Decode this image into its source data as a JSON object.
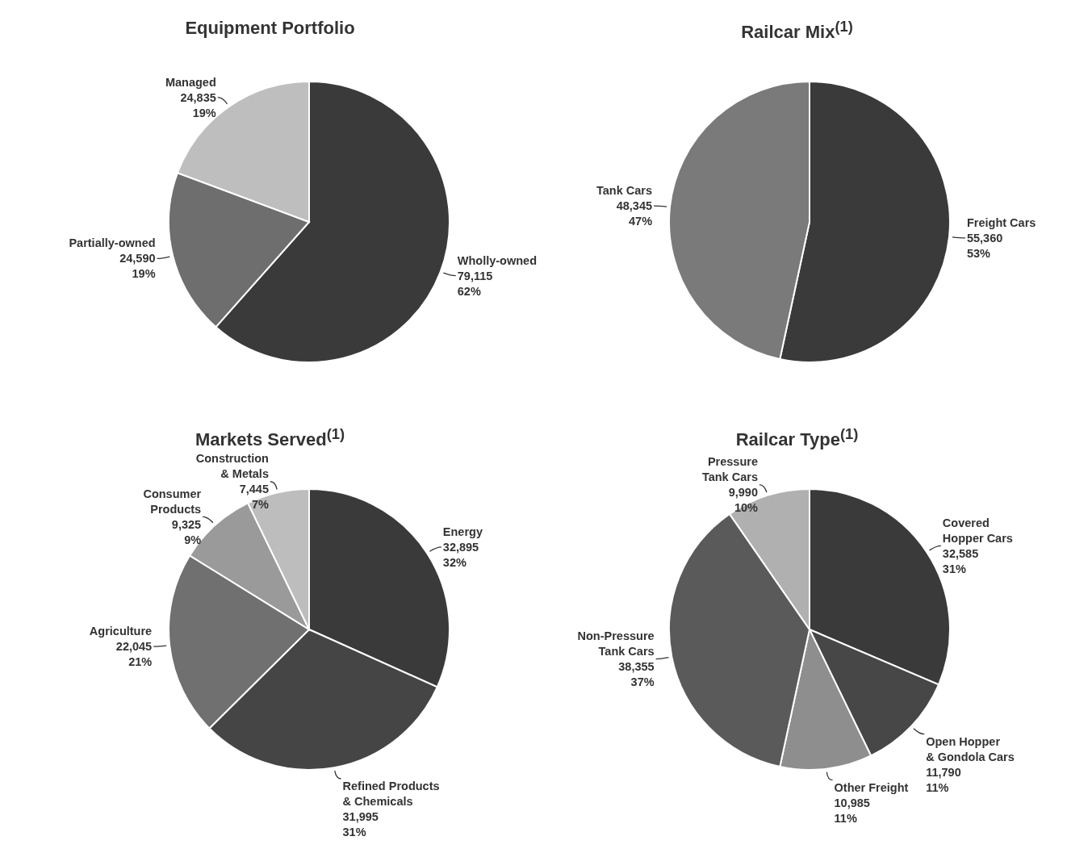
{
  "chart_data": [
    {
      "type": "pie",
      "title": "Equipment Portfolio",
      "categories": [
        "Wholly-owned",
        "Partially-owned",
        "Managed"
      ],
      "values": [
        79115,
        24590,
        24835
      ],
      "colors": [
        "#3a3a3a",
        "#6e6e6e",
        "#bebebe"
      ],
      "value_labels": [
        "79,115\n62%",
        "24,590\n19%",
        "24,835\n19%"
      ],
      "legend": false
    },
    {
      "type": "pie",
      "title": "Railcar Mix$^{(1)}$",
      "categories": [
        "Freight Cars",
        "Tank Cars"
      ],
      "values": [
        55360,
        48345
      ],
      "colors": [
        "#3a3a3a",
        "#7a7a7a"
      ],
      "value_labels": [
        "55,360\n53%",
        "48,345\n47%"
      ],
      "legend": false
    },
    {
      "type": "pie",
      "title": "Markets Served$^{(1)}$",
      "categories": [
        "Energy",
        "Refined Products & Chemicals",
        "Agriculture",
        "Consumer Products",
        "Construction & Metals"
      ],
      "values": [
        32895,
        31995,
        22045,
        9325,
        7445
      ],
      "colors": [
        "#3a3a3a",
        "#454545",
        "#707070",
        "#9a9a9a",
        "#bdbdbd"
      ],
      "value_labels": [
        "32,895\n32%",
        "31,995\n31%",
        "22,045\n21%",
        "9,325\n9%",
        "7,445\n7%"
      ],
      "legend": false
    },
    {
      "type": "pie",
      "title": "Railcar Type$^{(1)}$",
      "categories": [
        "Covered Hopper Cars",
        "Open Hopper & Gondola Cars",
        "Other Freight",
        "Non-Pressure Tank Cars",
        "Pressure Tank Cars"
      ],
      "values": [
        32585,
        11790,
        10985,
        38355,
        9990
      ],
      "colors": [
        "#3a3a3a",
        "#474747",
        "#8e8e8e",
        "#5a5a5a",
        "#b0b0b0"
      ],
      "value_labels": [
        "32,585\n31%",
        "11,790\n11%",
        "10,985\n11%",
        "38,355\n37%",
        "9,990\n10%"
      ],
      "legend": false
    }
  ]
}
